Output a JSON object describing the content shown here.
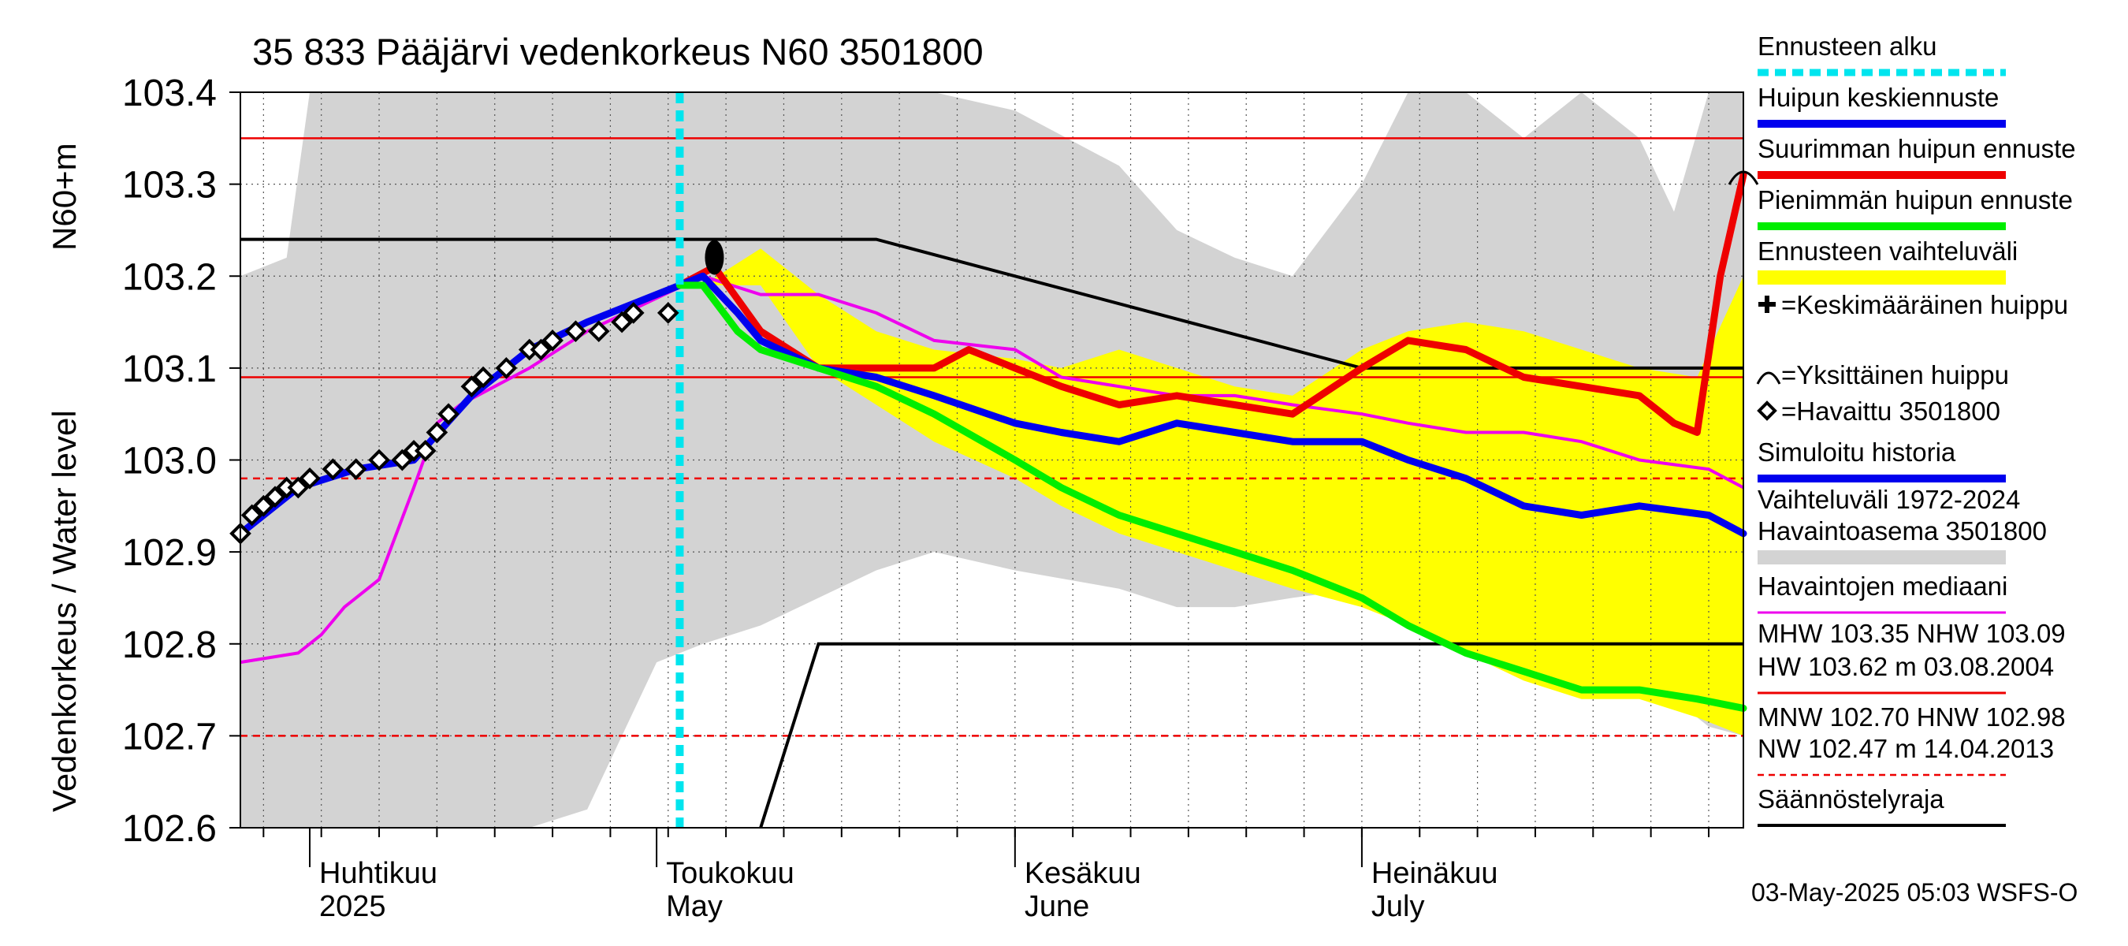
{
  "chart_data": {
    "type": "line",
    "title": "35 833 Pääjärvi vedenkorkeus N60 3501800",
    "ylabel_line1": "Vedenkorkeus / Water level",
    "ylabel_line2": "N60+m",
    "ylim": [
      102.6,
      103.4
    ],
    "yticks": [
      "102.6",
      "102.7",
      "102.8",
      "102.9",
      "103.0",
      "103.1",
      "103.2",
      "103.3",
      "103.4"
    ],
    "xlim": [
      "2025-03-26",
      "2025-08-03"
    ],
    "months": [
      {
        "fi": "Huhtikuu",
        "en": "2025",
        "start": "2025-04-01"
      },
      {
        "fi": "Toukokuu",
        "en": "May",
        "start": "2025-05-01"
      },
      {
        "fi": "Kesäkuu",
        "en": "June",
        "start": "2025-06-01"
      },
      {
        "fi": "Heinäkuu",
        "en": "July",
        "start": "2025-07-01"
      }
    ],
    "forecast_start": "2025-05-03",
    "footer": "03-May-2025 05:03 WSFS-O",
    "grid": true,
    "legend_position": "right",
    "colors": {
      "forecast_start": "#00e5ee",
      "mean_forecast": "#0000ee",
      "max_forecast": "#ee0000",
      "min_forecast": "#00ee00",
      "forecast_range": "#ffff00",
      "history_range": "#d3d3d3",
      "median": "#ee00ee",
      "regulation": "#000000",
      "ref_line": "#ee0000"
    },
    "legend": [
      {
        "key": "forecast_start",
        "label": "Ennusteen alku",
        "style": "dashed",
        "color": "#00e5ee"
      },
      {
        "key": "mean_forecast",
        "label": "Huipun keskiennuste",
        "style": "thick",
        "color": "#0000ee"
      },
      {
        "key": "max_forecast",
        "label": "Suurimman huipun ennuste",
        "style": "thick",
        "color": "#ee0000"
      },
      {
        "key": "min_forecast",
        "label": "Pienimmän huipun ennuste",
        "style": "thick",
        "color": "#00ee00"
      },
      {
        "key": "forecast_range",
        "label": "Ennusteen vaihteluväli",
        "style": "band",
        "color": "#ffff00"
      },
      {
        "key": "mean_peak",
        "label": "=Keskimääräinen huippu",
        "style": "cross"
      },
      {
        "key": "single_peak",
        "label": "=Yksittäinen huippu",
        "style": "arc"
      },
      {
        "key": "observed",
        "label": "=Havaittu 3501800",
        "style": "diamond"
      },
      {
        "key": "simulated",
        "label": "Simuloitu historia",
        "style": "thick",
        "color": "#0000ee"
      },
      {
        "key": "history_range",
        "label": "Vaihteluväli 1972-2024",
        "label2": " Havaintoasema 3501800",
        "style": "band",
        "color": "#d3d3d3"
      },
      {
        "key": "median",
        "label": "Havaintojen mediaani",
        "style": "line",
        "color": "#ee00ee"
      },
      {
        "key": "stats_high",
        "label": "MHW 103.35 NHW 103.09",
        "label2": "HW 103.62 m 03.08.2004",
        "style": "line",
        "color": "#ee0000"
      },
      {
        "key": "stats_low",
        "label": "MNW 102.70 HNW 102.98",
        "label2": "NW 102.47 m 14.04.2013",
        "style": "dashed",
        "color": "#ee0000"
      },
      {
        "key": "regulation",
        "label": "Säännöstelyraja",
        "style": "line",
        "color": "#000000"
      }
    ],
    "ref_lines": [
      {
        "name": "MHW",
        "y": 103.35,
        "style": "solid"
      },
      {
        "name": "NHW",
        "y": 103.09,
        "style": "solid"
      },
      {
        "name": "HNW",
        "y": 102.98,
        "style": "dashed"
      },
      {
        "name": "MNW",
        "y": 102.7,
        "style": "dashed"
      }
    ],
    "regulation_upper": {
      "x": [
        "2025-03-26",
        "2025-05-20",
        "2025-07-01",
        "2025-08-03"
      ],
      "y": [
        103.24,
        103.24,
        103.1,
        103.1
      ]
    },
    "regulation_lower": {
      "x": [
        "2025-05-10",
        "2025-05-15",
        "2025-08-03"
      ],
      "y": [
        102.6,
        102.8,
        102.8
      ]
    },
    "history_range": {
      "x": [
        "2025-03-26",
        "2025-03-30",
        "2025-04-01",
        "2025-04-05",
        "2025-04-10",
        "2025-04-15",
        "2025-04-20",
        "2025-04-25",
        "2025-05-01",
        "2025-05-05",
        "2025-05-10",
        "2025-05-15",
        "2025-05-20",
        "2025-05-25",
        "2025-06-01",
        "2025-06-10",
        "2025-06-15",
        "2025-06-20",
        "2025-06-25",
        "2025-07-01",
        "2025-07-05",
        "2025-07-10",
        "2025-07-15",
        "2025-07-20",
        "2025-07-25",
        "2025-07-28",
        "2025-07-31",
        "2025-08-03"
      ],
      "upper": [
        103.2,
        103.22,
        103.4,
        103.4,
        103.4,
        103.4,
        103.4,
        103.4,
        103.4,
        103.4,
        103.4,
        103.4,
        103.4,
        103.4,
        103.38,
        103.32,
        103.25,
        103.22,
        103.2,
        103.3,
        103.4,
        103.4,
        103.35,
        103.4,
        103.35,
        103.27,
        103.4,
        103.4
      ],
      "lower": [
        102.6,
        102.6,
        102.6,
        102.6,
        102.6,
        102.6,
        102.6,
        102.62,
        102.78,
        102.8,
        102.82,
        102.85,
        102.88,
        102.9,
        102.88,
        102.86,
        102.84,
        102.84,
        102.85,
        102.86,
        102.86,
        102.86,
        102.84,
        102.81,
        102.78,
        102.74,
        102.71,
        102.7
      ]
    },
    "forecast_range": {
      "x": [
        "2025-05-05",
        "2025-05-10",
        "2025-05-15",
        "2025-05-20",
        "2025-05-25",
        "2025-06-01",
        "2025-06-05",
        "2025-06-10",
        "2025-06-15",
        "2025-06-20",
        "2025-06-25",
        "2025-07-01",
        "2025-07-05",
        "2025-07-10",
        "2025-07-15",
        "2025-07-20",
        "2025-07-25",
        "2025-07-30",
        "2025-08-03"
      ],
      "upper": [
        103.19,
        103.23,
        103.18,
        103.14,
        103.12,
        103.11,
        103.1,
        103.12,
        103.1,
        103.08,
        103.07,
        103.12,
        103.14,
        103.15,
        103.14,
        103.12,
        103.1,
        103.09,
        103.2
      ],
      "lower": [
        103.19,
        103.19,
        103.1,
        103.06,
        103.02,
        102.98,
        102.95,
        102.92,
        102.9,
        102.88,
        102.86,
        102.84,
        102.82,
        102.79,
        102.76,
        102.74,
        102.74,
        102.72,
        102.7
      ]
    },
    "median": {
      "x": [
        "2025-03-26",
        "2025-03-31",
        "2025-04-02",
        "2025-04-04",
        "2025-04-07",
        "2025-04-10",
        "2025-04-12",
        "2025-04-14",
        "2025-04-17",
        "2025-04-20",
        "2025-04-25",
        "2025-04-30",
        "2025-05-05",
        "2025-05-10",
        "2025-05-15",
        "2025-05-20",
        "2025-05-25",
        "2025-06-01",
        "2025-06-05",
        "2025-06-10",
        "2025-06-15",
        "2025-06-20",
        "2025-06-25",
        "2025-07-01",
        "2025-07-05",
        "2025-07-10",
        "2025-07-15",
        "2025-07-20",
        "2025-07-25",
        "2025-07-31",
        "2025-08-03"
      ],
      "y": [
        102.78,
        102.79,
        102.81,
        102.84,
        102.87,
        102.97,
        103.04,
        103.06,
        103.08,
        103.1,
        103.14,
        103.17,
        103.2,
        103.18,
        103.18,
        103.16,
        103.13,
        103.12,
        103.09,
        103.08,
        103.07,
        103.07,
        103.06,
        103.05,
        103.04,
        103.03,
        103.03,
        103.02,
        103.0,
        102.99,
        102.97
      ]
    },
    "observed": {
      "x": [
        "2025-03-26",
        "2025-03-27",
        "2025-03-28",
        "2025-03-29",
        "2025-03-30",
        "2025-03-31",
        "2025-04-01",
        "2025-04-03",
        "2025-04-05",
        "2025-04-07",
        "2025-04-09",
        "2025-04-10",
        "2025-04-11",
        "2025-04-12",
        "2025-04-13",
        "2025-04-15",
        "2025-04-16",
        "2025-04-18",
        "2025-04-20",
        "2025-04-21",
        "2025-04-22",
        "2025-04-24",
        "2025-04-26",
        "2025-04-28",
        "2025-04-29",
        "2025-05-02"
      ],
      "y": [
        102.92,
        102.94,
        102.95,
        102.96,
        102.97,
        102.97,
        102.98,
        102.99,
        102.99,
        103.0,
        103.0,
        103.01,
        103.01,
        103.03,
        103.05,
        103.08,
        103.09,
        103.1,
        103.12,
        103.12,
        103.13,
        103.14,
        103.14,
        103.15,
        103.16,
        103.16
      ]
    },
    "series": [
      {
        "key": "max_forecast",
        "x": [
          "2025-05-03",
          "2025-05-06",
          "2025-05-10",
          "2025-05-15",
          "2025-05-20",
          "2025-05-25",
          "2025-05-28",
          "2025-06-01",
          "2025-06-05",
          "2025-06-10",
          "2025-06-15",
          "2025-06-20",
          "2025-06-25",
          "2025-07-01",
          "2025-07-05",
          "2025-07-10",
          "2025-07-15",
          "2025-07-20",
          "2025-07-25",
          "2025-07-28",
          "2025-07-30",
          "2025-08-01",
          "2025-08-03"
        ],
        "y": [
          103.19,
          103.21,
          103.14,
          103.1,
          103.1,
          103.1,
          103.12,
          103.1,
          103.08,
          103.06,
          103.07,
          103.06,
          103.05,
          103.1,
          103.13,
          103.12,
          103.09,
          103.08,
          103.07,
          103.04,
          103.03,
          103.2,
          103.31
        ]
      },
      {
        "key": "mean_forecast",
        "x": [
          "2025-03-26",
          "2025-03-31",
          "2025-04-05",
          "2025-04-10",
          "2025-04-15",
          "2025-04-20",
          "2025-04-25",
          "2025-05-03",
          "2025-05-05",
          "2025-05-08",
          "2025-05-10",
          "2025-05-15",
          "2025-05-20",
          "2025-05-25",
          "2025-06-01",
          "2025-06-05",
          "2025-06-10",
          "2025-06-15",
          "2025-06-20",
          "2025-06-25",
          "2025-07-01",
          "2025-07-05",
          "2025-07-10",
          "2025-07-15",
          "2025-07-20",
          "2025-07-25",
          "2025-07-31",
          "2025-08-03"
        ],
        "y": [
          102.92,
          102.97,
          102.99,
          103.0,
          103.07,
          103.12,
          103.15,
          103.19,
          103.2,
          103.16,
          103.13,
          103.1,
          103.09,
          103.07,
          103.04,
          103.03,
          103.02,
          103.04,
          103.03,
          103.02,
          103.02,
          103.0,
          102.98,
          102.95,
          102.94,
          102.95,
          102.94,
          102.92
        ]
      },
      {
        "key": "min_forecast",
        "x": [
          "2025-05-03",
          "2025-05-05",
          "2025-05-08",
          "2025-05-10",
          "2025-05-15",
          "2025-05-20",
          "2025-05-25",
          "2025-06-01",
          "2025-06-05",
          "2025-06-10",
          "2025-06-15",
          "2025-06-20",
          "2025-06-25",
          "2025-07-01",
          "2025-07-05",
          "2025-07-10",
          "2025-07-15",
          "2025-07-20",
          "2025-07-25",
          "2025-07-30",
          "2025-08-03"
        ],
        "y": [
          103.19,
          103.19,
          103.14,
          103.12,
          103.1,
          103.08,
          103.05,
          103.0,
          102.97,
          102.94,
          102.92,
          102.9,
          102.88,
          102.85,
          102.82,
          102.79,
          102.77,
          102.75,
          102.75,
          102.74,
          102.73
        ]
      }
    ]
  }
}
